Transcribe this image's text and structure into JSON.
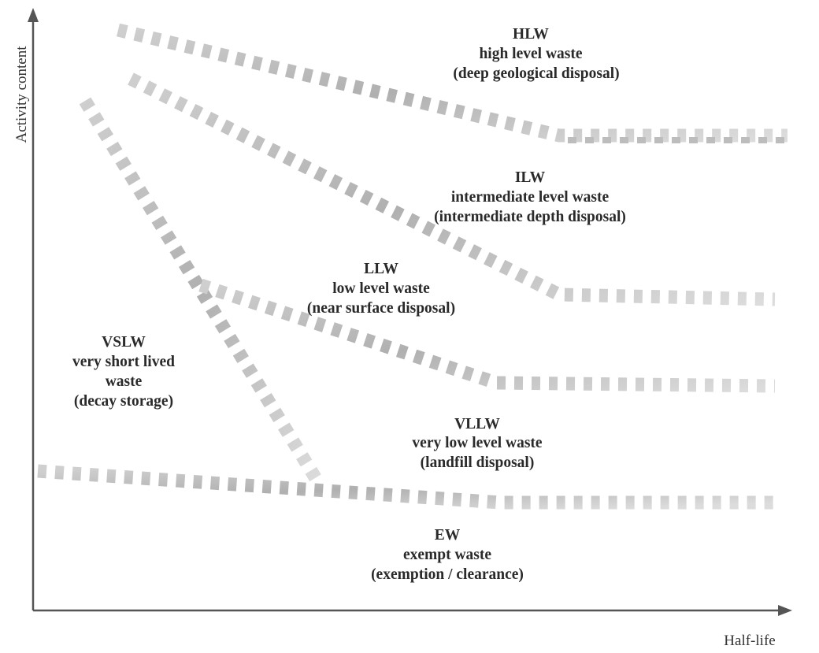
{
  "axes": {
    "y_label": "Activity content",
    "x_label": "Half-life"
  },
  "classes": [
    {
      "id": "hlw",
      "abbr": "HLW",
      "name": "high level waste",
      "disposal": "(deep geological disposal)"
    },
    {
      "id": "ilw",
      "abbr": "ILW",
      "name": "intermediate level waste",
      "disposal": "(intermediate depth disposal)"
    },
    {
      "id": "llw",
      "abbr": "LLW",
      "name": "low level waste",
      "disposal": "(near surface disposal)"
    },
    {
      "id": "vslw",
      "abbr": "VSLW",
      "name_line1": "very short lived",
      "name_line2": "waste",
      "disposal": "(decay storage)"
    },
    {
      "id": "vllw",
      "abbr": "VLLW",
      "name": "very low level waste",
      "disposal": "(landfill disposal)"
    },
    {
      "id": "ew",
      "abbr": "EW",
      "name": "exempt waste",
      "disposal": "(exemption / clearance)"
    }
  ],
  "colors": {
    "axis": "#555555",
    "boundary_light": "#d4d4d4",
    "boundary_dark": "#b8b8b8",
    "text": "#2a2a2a"
  }
}
